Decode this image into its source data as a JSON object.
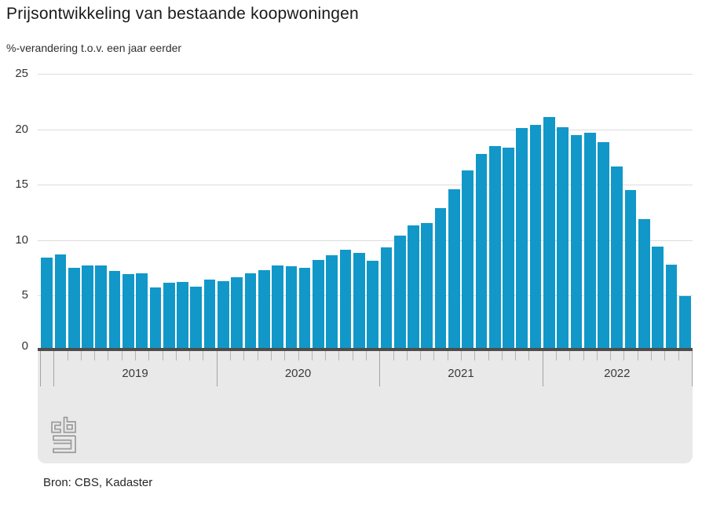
{
  "header": {
    "title": "Prijsontwikkeling van bestaande koopwoningen",
    "subtitle": "%-verandering t.o.v. een jaar eerder"
  },
  "footer": {
    "source_label": "Bron: CBS, Kadaster",
    "logo_name": "cbs-logo"
  },
  "colors": {
    "bar": "#1198c8",
    "zero_axis_band": "#4d4d4d",
    "footer_band": "#e9e9e9",
    "gridline": "#dcdcdc",
    "tick_long": "#a3a3a3",
    "tick_short": "#b5b5b5",
    "axis_text": "#333333"
  },
  "chart_data": {
    "type": "bar",
    "title": "Prijsontwikkeling van bestaande koopwoningen",
    "ylabel": "%-verandering t.o.v. een jaar eerder",
    "xlabel": "",
    "ylim": [
      0,
      25
    ],
    "yticks": [
      0,
      5,
      10,
      15,
      20,
      25
    ],
    "grid": "horizontal",
    "legend": "none",
    "categories": [
      "2018-12",
      "2019-01",
      "2019-02",
      "2019-03",
      "2019-04",
      "2019-05",
      "2019-06",
      "2019-07",
      "2019-08",
      "2019-09",
      "2019-10",
      "2019-11",
      "2019-12",
      "2020-01",
      "2020-02",
      "2020-03",
      "2020-04",
      "2020-05",
      "2020-06",
      "2020-07",
      "2020-08",
      "2020-09",
      "2020-10",
      "2020-11",
      "2020-12",
      "2021-01",
      "2021-02",
      "2021-03",
      "2021-04",
      "2021-05",
      "2021-06",
      "2021-07",
      "2021-08",
      "2021-09",
      "2021-10",
      "2021-11",
      "2021-12",
      "2022-01",
      "2022-02",
      "2022-03",
      "2022-04",
      "2022-05",
      "2022-06",
      "2022-07",
      "2022-08",
      "2022-09",
      "2022-10",
      "2022-11"
    ],
    "values": [
      8.4,
      8.7,
      7.5,
      7.7,
      7.7,
      7.2,
      6.9,
      7.0,
      5.7,
      6.1,
      6.2,
      5.8,
      6.4,
      6.3,
      6.6,
      7.0,
      7.3,
      7.7,
      7.6,
      7.5,
      8.2,
      8.6,
      9.1,
      8.8,
      8.1,
      9.3,
      10.4,
      11.3,
      11.5,
      12.9,
      14.6,
      16.3,
      17.8,
      18.5,
      18.3,
      20.1,
      20.4,
      21.1,
      20.2,
      19.5,
      19.7,
      18.8,
      16.6,
      14.5,
      11.9,
      9.4,
      7.8,
      4.9
    ],
    "x_year_groups": [
      {
        "label": "2019",
        "from_month_index": 1,
        "to_month_index": 13
      },
      {
        "label": "2020",
        "from_month_index": 13,
        "to_month_index": 25
      },
      {
        "label": "2021",
        "from_month_index": 25,
        "to_month_index": 37
      },
      {
        "label": "2022",
        "from_month_index": 37,
        "to_month_index": 48
      }
    ]
  }
}
